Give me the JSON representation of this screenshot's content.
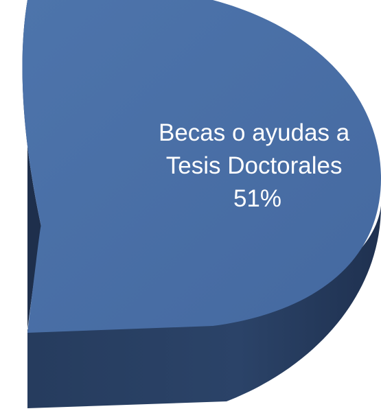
{
  "chart_data": {
    "type": "pie",
    "title": "",
    "slices": [
      {
        "label_lines": [
          "Becas o ayudas a",
          "Tesis Doctorales"
        ],
        "value": 51,
        "percent_label": "51%"
      }
    ],
    "style": {
      "three_d": true,
      "top_color": "#4A70A7",
      "side_color": "#25395A",
      "inner_side_color": "#1E2F4C",
      "label_color": "#FFFFFF"
    }
  }
}
